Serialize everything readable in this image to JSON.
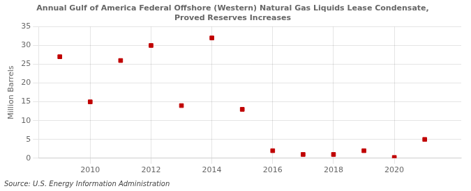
{
  "chart_data": {
    "type": "scatter",
    "title": [
      "Annual Gulf of America Federal Offshore (Western) Natural Gas Liquids Lease Condensate,",
      "Proved Reserves Increases"
    ],
    "ylabel": "Million Barrels",
    "annotations": [
      "Source: U.S. Energy Information Administration"
    ],
    "x": [
      2009,
      2010,
      2011,
      2012,
      2013,
      2014,
      2015,
      2016,
      2017,
      2018,
      2019,
      2020,
      2021
    ],
    "values": [
      27,
      15,
      26,
      30,
      14,
      32,
      13,
      2,
      1,
      1,
      2,
      0.2,
      5
    ],
    "color": "#c00000",
    "marker": "square",
    "xlim": [
      2008.3,
      2022.2
    ],
    "xticks": [
      2010,
      2012,
      2014,
      2016,
      2018,
      2020
    ],
    "ylim": [
      0,
      35
    ],
    "yticks": [
      0,
      5,
      10,
      15,
      20,
      25,
      30,
      35
    ],
    "grid": true
  }
}
